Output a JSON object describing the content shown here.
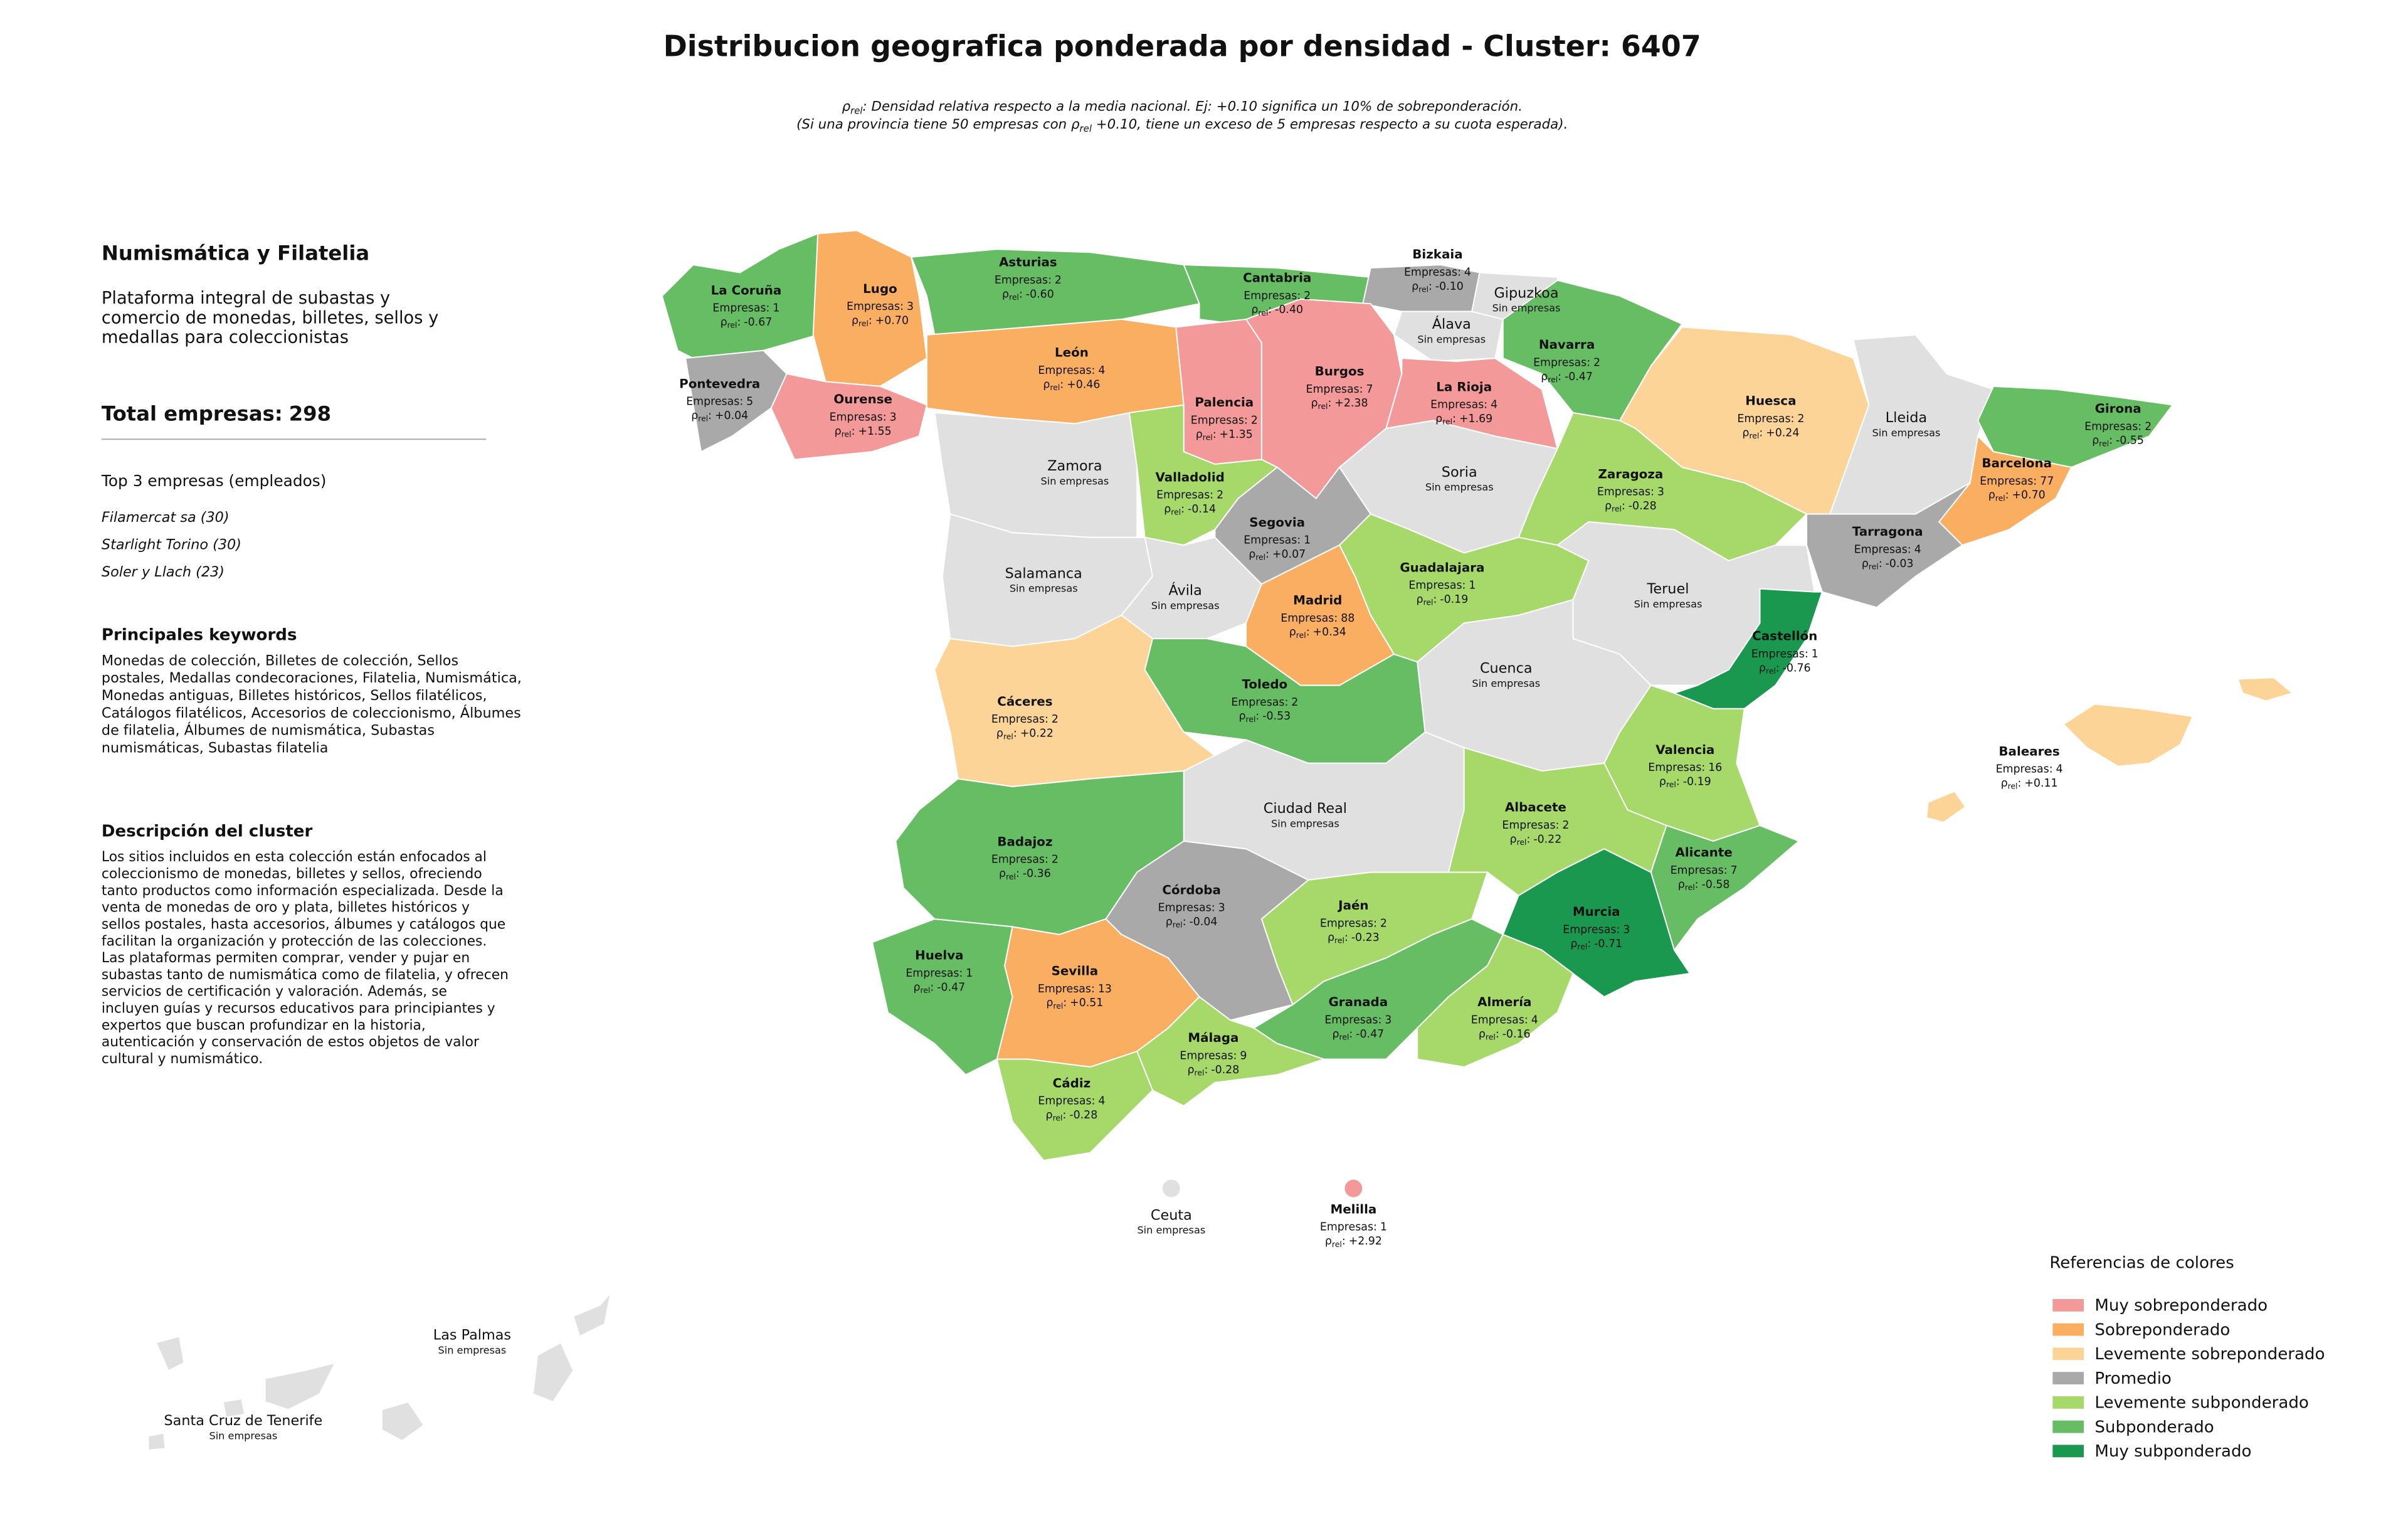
{
  "header": {
    "title": "Distribucion geografica ponderada por densidad - Cluster: 6407",
    "subtitle_lines": [
      {
        "pre": "ρ",
        "sub": "rel",
        "text": ": Densidad relativa respecto a la media nacional. Ej: +0.10 significa un 10% de sobreponderación."
      },
      {
        "pre": "(Si una provincia tiene 50 empresas con ρ",
        "sub": "rel",
        "text": " +0.10, tiene un exceso de 5 empresas respecto a su cuota esperada)."
      }
    ]
  },
  "panel": {
    "title": "Numismática y Filatelia",
    "description_lines": [
      "Plataforma integral de subastas y",
      "comercio de monedas, billetes, sellos y",
      "medallas para coleccionistas"
    ],
    "total_label": "Total empresas:",
    "total": 298,
    "top_title": "Top 3 empresas (empleados)",
    "top_companies": [
      "Filamercat sa (30)",
      "Starlight Torino (30)",
      "Soler y Llach (23)"
    ],
    "keywords_title": "Principales keywords",
    "keywords_lines": [
      "Monedas de colección, Billetes de colección, Sellos",
      "postales, Medallas condecoraciones, Filatelia, Numismática,",
      "Monedas antiguas, Billetes históricos, Sellos filatélicos,",
      "Catálogos filatélicos, Accesorios de coleccionismo, Álbumes",
      "de filatelia, Álbumes de numismática, Subastas",
      "numismáticas, Subastas filatelia"
    ],
    "cluster_title": "Descripción del cluster",
    "cluster_lines": [
      "Los sitios incluidos en esta colección están enfocados al",
      "coleccionismo de monedas, billetes y sellos, ofreciendo",
      "tanto productos como información especializada. Desde la",
      "venta de monedas de oro y plata, billetes históricos y",
      "sellos postales, hasta accesorios, álbumes y catálogos que",
      "facilitan la organización y protección de las colecciones.",
      "Las plataformas permiten comprar, vender y pujar en",
      "subastas tanto de numismática como de filatelia, y ofrecen",
      "servicios de certificación y valoración. Además, se",
      "incluyen guías y recursos educativos para principiantes y",
      "expertos que buscan profundizar en la historia,",
      "autenticación y conservación de estos objetos de valor",
      "cultural y numismático."
    ]
  },
  "map": {
    "empresas_label": "Empresas:",
    "rho_symbol": "ρ",
    "rho_sub": "rel",
    "rho_suffix": ":",
    "no_data_label": "Sin empresas",
    "no_data_color": "#e0e0e0",
    "provinces": [
      {
        "name": "La Coruña",
        "empresas": 1,
        "rho": "-0.67",
        "category": "Subponderado"
      },
      {
        "name": "Lugo",
        "empresas": 3,
        "rho": "+0.70",
        "category": "Sobreponderado"
      },
      {
        "name": "Asturias",
        "empresas": 2,
        "rho": "-0.60",
        "category": "Subponderado"
      },
      {
        "name": "Cantabria",
        "empresas": 2,
        "rho": "-0.40",
        "category": "Subponderado"
      },
      {
        "name": "Bizkaia",
        "empresas": 4,
        "rho": "-0.10",
        "category": "Promedio"
      },
      {
        "name": "Gipuzkoa"
      },
      {
        "name": "Álava"
      },
      {
        "name": "Navarra",
        "empresas": 2,
        "rho": "-0.47",
        "category": "Subponderado"
      },
      {
        "name": "Pontevedra",
        "empresas": 5,
        "rho": "+0.04",
        "category": "Promedio"
      },
      {
        "name": "Ourense",
        "empresas": 3,
        "rho": "+1.55",
        "category": "Muy sobreponderado"
      },
      {
        "name": "León",
        "empresas": 4,
        "rho": "+0.46",
        "category": "Sobreponderado"
      },
      {
        "name": "Palencia",
        "empresas": 2,
        "rho": "+1.35",
        "category": "Muy sobreponderado"
      },
      {
        "name": "Burgos",
        "empresas": 7,
        "rho": "+2.38",
        "category": "Muy sobreponderado"
      },
      {
        "name": "La Rioja",
        "empresas": 4,
        "rho": "+1.69",
        "category": "Muy sobreponderado"
      },
      {
        "name": "Huesca",
        "empresas": 2,
        "rho": "+0.24",
        "category": "Levemente sobreponderado"
      },
      {
        "name": "Lleida"
      },
      {
        "name": "Girona",
        "empresas": 2,
        "rho": "-0.55",
        "category": "Subponderado"
      },
      {
        "name": "Barcelona",
        "empresas": 77,
        "rho": "+0.70",
        "category": "Sobreponderado"
      },
      {
        "name": "Zamora"
      },
      {
        "name": "Valladolid",
        "empresas": 2,
        "rho": "-0.14",
        "category": "Levemente subponderado"
      },
      {
        "name": "Soria"
      },
      {
        "name": "Zaragoza",
        "empresas": 3,
        "rho": "-0.28",
        "category": "Levemente subponderado"
      },
      {
        "name": "Segovia",
        "empresas": 1,
        "rho": "+0.07",
        "category": "Promedio"
      },
      {
        "name": "Tarragona",
        "empresas": 4,
        "rho": "-0.03",
        "category": "Promedio"
      },
      {
        "name": "Salamanca"
      },
      {
        "name": "Ávila"
      },
      {
        "name": "Guadalajara",
        "empresas": 1,
        "rho": "-0.19",
        "category": "Levemente subponderado"
      },
      {
        "name": "Madrid",
        "empresas": 88,
        "rho": "+0.34",
        "category": "Sobreponderado"
      },
      {
        "name": "Teruel"
      },
      {
        "name": "Castellón",
        "empresas": 1,
        "rho": "-0.76",
        "category": "Muy subponderado"
      },
      {
        "name": "Cáceres",
        "empresas": 2,
        "rho": "+0.22",
        "category": "Levemente sobreponderado"
      },
      {
        "name": "Toledo",
        "empresas": 2,
        "rho": "-0.53",
        "category": "Subponderado"
      },
      {
        "name": "Cuenca"
      },
      {
        "name": "Valencia",
        "empresas": 16,
        "rho": "-0.19",
        "category": "Levemente subponderado"
      },
      {
        "name": "Ciudad Real"
      },
      {
        "name": "Albacete",
        "empresas": 2,
        "rho": "-0.22",
        "category": "Levemente subponderado"
      },
      {
        "name": "Badajoz",
        "empresas": 2,
        "rho": "-0.36",
        "category": "Subponderado"
      },
      {
        "name": "Alicante",
        "empresas": 7,
        "rho": "-0.58",
        "category": "Subponderado"
      },
      {
        "name": "Córdoba",
        "empresas": 3,
        "rho": "-0.04",
        "category": "Promedio"
      },
      {
        "name": "Jaén",
        "empresas": 2,
        "rho": "-0.23",
        "category": "Levemente subponderado"
      },
      {
        "name": "Murcia",
        "empresas": 3,
        "rho": "-0.71",
        "category": "Muy subponderado"
      },
      {
        "name": "Huelva",
        "empresas": 1,
        "rho": "-0.47",
        "category": "Subponderado"
      },
      {
        "name": "Sevilla",
        "empresas": 13,
        "rho": "+0.51",
        "category": "Sobreponderado"
      },
      {
        "name": "Granada",
        "empresas": 3,
        "rho": "-0.47",
        "category": "Subponderado"
      },
      {
        "name": "Almería",
        "empresas": 4,
        "rho": "-0.16",
        "category": "Levemente subponderado"
      },
      {
        "name": "Málaga",
        "empresas": 9,
        "rho": "-0.28",
        "category": "Levemente subponderado"
      },
      {
        "name": "Cádiz",
        "empresas": 4,
        "rho": "-0.28",
        "category": "Levemente subponderado"
      },
      {
        "name": "Baleares",
        "empresas": 4,
        "rho": "+0.11",
        "category": "Levemente sobreponderado"
      },
      {
        "name": "Ceuta"
      },
      {
        "name": "Melilla",
        "empresas": 1,
        "rho": "+2.92",
        "category": "Muy sobreponderado"
      },
      {
        "name": "Las Palmas"
      },
      {
        "name": "Santa Cruz de Tenerife"
      }
    ]
  },
  "legend": {
    "title": "Referencias de colores",
    "items": [
      {
        "name": "Muy sobreponderado",
        "color": "#f4999a"
      },
      {
        "name": "Sobreponderado",
        "color": "#f9ae62"
      },
      {
        "name": "Levemente sobreponderado",
        "color": "#fdd497"
      },
      {
        "name": "Promedio",
        "color": "#a9a9a9"
      },
      {
        "name": "Levemente subponderado",
        "color": "#a6d96a"
      },
      {
        "name": "Subponderado",
        "color": "#66bd63"
      },
      {
        "name": "Muy subponderado",
        "color": "#1a9850"
      }
    ]
  }
}
